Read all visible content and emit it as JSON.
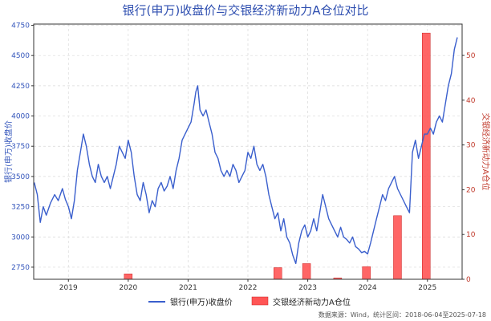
{
  "chart_data": {
    "type": "line+bar",
    "title": "银行(申万)收盘价与交银经济新动力A仓位对比",
    "ylabel_left": "银行(申万)收盘价",
    "ylabel_right": "交银经济新动力A仓位",
    "ylim_left": [
      2650,
      4760
    ],
    "ylim_right": [
      0,
      57
    ],
    "yticks_left": [
      2750,
      3000,
      3250,
      3500,
      3750,
      4000,
      4250,
      4500,
      4750
    ],
    "yticks_right": [
      0,
      10,
      20,
      30,
      40,
      50
    ],
    "xlim": [
      2018.42,
      2025.58
    ],
    "xticks": [
      2019,
      2020,
      2021,
      2022,
      2023,
      2024,
      2025
    ],
    "xtick_labels": [
      "2019",
      "2020",
      "2021",
      "2022",
      "2023",
      "2024",
      "2025"
    ],
    "grid": true,
    "line_series": {
      "name": "银行(申万)收盘价",
      "color": "#3a5fcd",
      "points": [
        [
          2018.43,
          3450
        ],
        [
          2018.48,
          3350
        ],
        [
          2018.53,
          3120
        ],
        [
          2018.58,
          3250
        ],
        [
          2018.63,
          3180
        ],
        [
          2018.7,
          3280
        ],
        [
          2018.77,
          3350
        ],
        [
          2018.83,
          3300
        ],
        [
          2018.9,
          3400
        ],
        [
          2018.95,
          3310
        ],
        [
          2019.0,
          3250
        ],
        [
          2019.05,
          3150
        ],
        [
          2019.1,
          3300
        ],
        [
          2019.15,
          3550
        ],
        [
          2019.2,
          3700
        ],
        [
          2019.25,
          3850
        ],
        [
          2019.3,
          3750
        ],
        [
          2019.35,
          3600
        ],
        [
          2019.4,
          3500
        ],
        [
          2019.45,
          3450
        ],
        [
          2019.5,
          3600
        ],
        [
          2019.55,
          3500
        ],
        [
          2019.6,
          3450
        ],
        [
          2019.65,
          3500
        ],
        [
          2019.7,
          3400
        ],
        [
          2019.75,
          3500
        ],
        [
          2019.8,
          3600
        ],
        [
          2019.85,
          3750
        ],
        [
          2019.9,
          3700
        ],
        [
          2019.95,
          3650
        ],
        [
          2020.0,
          3800
        ],
        [
          2020.05,
          3700
        ],
        [
          2020.1,
          3500
        ],
        [
          2020.15,
          3350
        ],
        [
          2020.2,
          3300
        ],
        [
          2020.25,
          3450
        ],
        [
          2020.3,
          3350
        ],
        [
          2020.35,
          3200
        ],
        [
          2020.4,
          3300
        ],
        [
          2020.45,
          3250
        ],
        [
          2020.5,
          3400
        ],
        [
          2020.55,
          3450
        ],
        [
          2020.6,
          3380
        ],
        [
          2020.65,
          3420
        ],
        [
          2020.7,
          3500
        ],
        [
          2020.75,
          3400
        ],
        [
          2020.8,
          3550
        ],
        [
          2020.85,
          3650
        ],
        [
          2020.9,
          3800
        ],
        [
          2020.95,
          3850
        ],
        [
          2021.0,
          3900
        ],
        [
          2021.05,
          3950
        ],
        [
          2021.1,
          4100
        ],
        [
          2021.13,
          4200
        ],
        [
          2021.16,
          4250
        ],
        [
          2021.2,
          4050
        ],
        [
          2021.25,
          4000
        ],
        [
          2021.3,
          4050
        ],
        [
          2021.35,
          3950
        ],
        [
          2021.4,
          3850
        ],
        [
          2021.45,
          3700
        ],
        [
          2021.5,
          3650
        ],
        [
          2021.55,
          3550
        ],
        [
          2021.6,
          3500
        ],
        [
          2021.65,
          3550
        ],
        [
          2021.7,
          3500
        ],
        [
          2021.75,
          3600
        ],
        [
          2021.8,
          3550
        ],
        [
          2021.85,
          3450
        ],
        [
          2021.9,
          3500
        ],
        [
          2021.95,
          3550
        ],
        [
          2022.0,
          3700
        ],
        [
          2022.05,
          3650
        ],
        [
          2022.1,
          3750
        ],
        [
          2022.15,
          3600
        ],
        [
          2022.2,
          3550
        ],
        [
          2022.25,
          3600
        ],
        [
          2022.3,
          3500
        ],
        [
          2022.35,
          3350
        ],
        [
          2022.4,
          3250
        ],
        [
          2022.45,
          3150
        ],
        [
          2022.5,
          3200
        ],
        [
          2022.55,
          3050
        ],
        [
          2022.6,
          3150
        ],
        [
          2022.65,
          3000
        ],
        [
          2022.7,
          2950
        ],
        [
          2022.75,
          2850
        ],
        [
          2022.8,
          2780
        ],
        [
          2022.85,
          2950
        ],
        [
          2022.9,
          3050
        ],
        [
          2022.95,
          3100
        ],
        [
          2023.0,
          3000
        ],
        [
          2023.05,
          3050
        ],
        [
          2023.1,
          3150
        ],
        [
          2023.15,
          3050
        ],
        [
          2023.2,
          3200
        ],
        [
          2023.25,
          3350
        ],
        [
          2023.3,
          3250
        ],
        [
          2023.35,
          3150
        ],
        [
          2023.4,
          3100
        ],
        [
          2023.45,
          3050
        ],
        [
          2023.5,
          3000
        ],
        [
          2023.55,
          3080
        ],
        [
          2023.6,
          3000
        ],
        [
          2023.65,
          2980
        ],
        [
          2023.7,
          2950
        ],
        [
          2023.75,
          3000
        ],
        [
          2023.8,
          2920
        ],
        [
          2023.85,
          2900
        ],
        [
          2023.9,
          2870
        ],
        [
          2023.95,
          2880
        ],
        [
          2024.0,
          2860
        ],
        [
          2024.05,
          2950
        ],
        [
          2024.1,
          3050
        ],
        [
          2024.15,
          3150
        ],
        [
          2024.2,
          3250
        ],
        [
          2024.25,
          3350
        ],
        [
          2024.3,
          3300
        ],
        [
          2024.35,
          3400
        ],
        [
          2024.4,
          3450
        ],
        [
          2024.45,
          3500
        ],
        [
          2024.5,
          3400
        ],
        [
          2024.55,
          3350
        ],
        [
          2024.6,
          3300
        ],
        [
          2024.65,
          3250
        ],
        [
          2024.7,
          3200
        ],
        [
          2024.75,
          3700
        ],
        [
          2024.8,
          3800
        ],
        [
          2024.85,
          3650
        ],
        [
          2024.9,
          3750
        ],
        [
          2024.95,
          3850
        ],
        [
          2025.0,
          3850
        ],
        [
          2025.05,
          3900
        ],
        [
          2025.1,
          3850
        ],
        [
          2025.15,
          3950
        ],
        [
          2025.2,
          4000
        ],
        [
          2025.25,
          3950
        ],
        [
          2025.3,
          4100
        ],
        [
          2025.35,
          4250
        ],
        [
          2025.4,
          4350
        ],
        [
          2025.45,
          4550
        ],
        [
          2025.5,
          4650
        ]
      ]
    },
    "bar_series": {
      "name": "交银经济新动力A仓位",
      "color": "#ff5555",
      "x": [
        2020.0,
        2022.5,
        2022.98,
        2023.5,
        2023.98,
        2024.5,
        2024.98
      ],
      "values": [
        1.2,
        2.6,
        3.5,
        0.3,
        2.8,
        14.2,
        55.0
      ]
    },
    "legend": {
      "line_label": "银行(申万)收盘价",
      "bar_label": "交银经济新动力A仓位",
      "position": "bottom-center"
    },
    "source_text": "数据来源：Wind，统计区间：2018-06-04至2025-07-18"
  }
}
